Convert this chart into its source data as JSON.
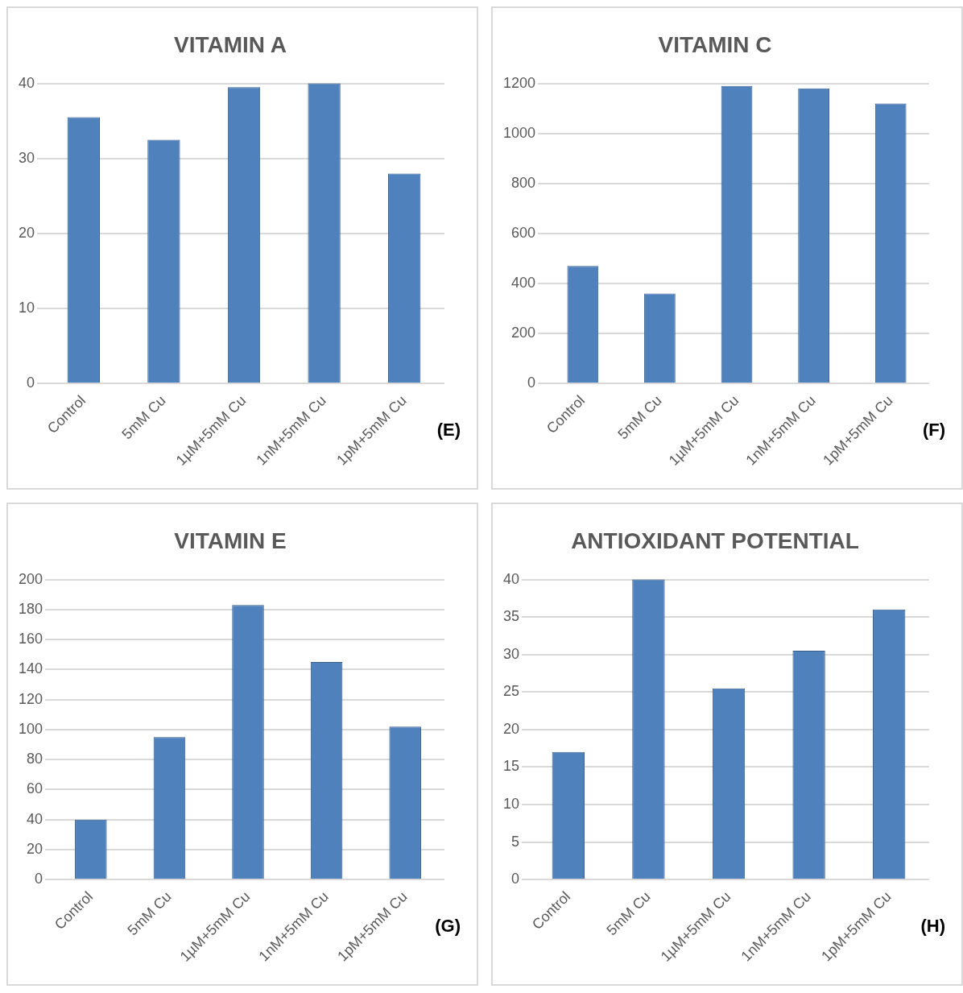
{
  "chart_data": [
    {
      "type": "bar",
      "title": "VITAMIN A",
      "categories": [
        "Control",
        "5mM Cu",
        "1µM+5mM Cu",
        "1nM+5mM Cu",
        "1pM+5mM Cu"
      ],
      "values": [
        35.5,
        32.5,
        39.5,
        40,
        28
      ],
      "color": "#4f81bd",
      "ylim": [
        0,
        40
      ],
      "yticks": [
        0,
        10,
        20,
        30,
        40
      ],
      "grid": "y",
      "annotations": [
        "(E)"
      ]
    },
    {
      "type": "bar",
      "title": "VITAMIN C",
      "categories": [
        "Control",
        "5mM Cu",
        "1µM+5mM Cu",
        "1nM+5mM Cu",
        "1pM+5mM Cu"
      ],
      "values": [
        470,
        360,
        1190,
        1180,
        1120
      ],
      "color": "#4f81bd",
      "ylim": [
        0,
        1200
      ],
      "yticks": [
        0,
        200,
        400,
        600,
        800,
        1000,
        1200
      ],
      "grid": "y",
      "annotations": [
        "(F)"
      ]
    },
    {
      "type": "bar",
      "title": "VITAMIN E",
      "categories": [
        "Control",
        "5mM Cu",
        "1µM+5mM Cu",
        "1nM+5mM Cu",
        "1pM+5mM Cu"
      ],
      "values": [
        40,
        95,
        183,
        145,
        102
      ],
      "color": "#4f81bd",
      "ylim": [
        0,
        200
      ],
      "yticks": [
        0,
        20,
        40,
        60,
        80,
        100,
        120,
        140,
        160,
        180,
        200
      ],
      "grid": "y",
      "annotations": [
        "(G)"
      ]
    },
    {
      "type": "bar",
      "title": "ANTIOXIDANT POTENTIAL",
      "categories": [
        "Control",
        "5mM Cu",
        "1µM+5mM Cu",
        "1nM+5mM Cu",
        "1pM+5mM Cu"
      ],
      "values": [
        17,
        40,
        25.5,
        30.5,
        36
      ],
      "color": "#4f81bd",
      "ylim": [
        0,
        40
      ],
      "yticks": [
        0,
        5,
        10,
        15,
        20,
        25,
        30,
        35,
        40
      ],
      "grid": "y",
      "annotations": [
        "(H)"
      ]
    }
  ]
}
